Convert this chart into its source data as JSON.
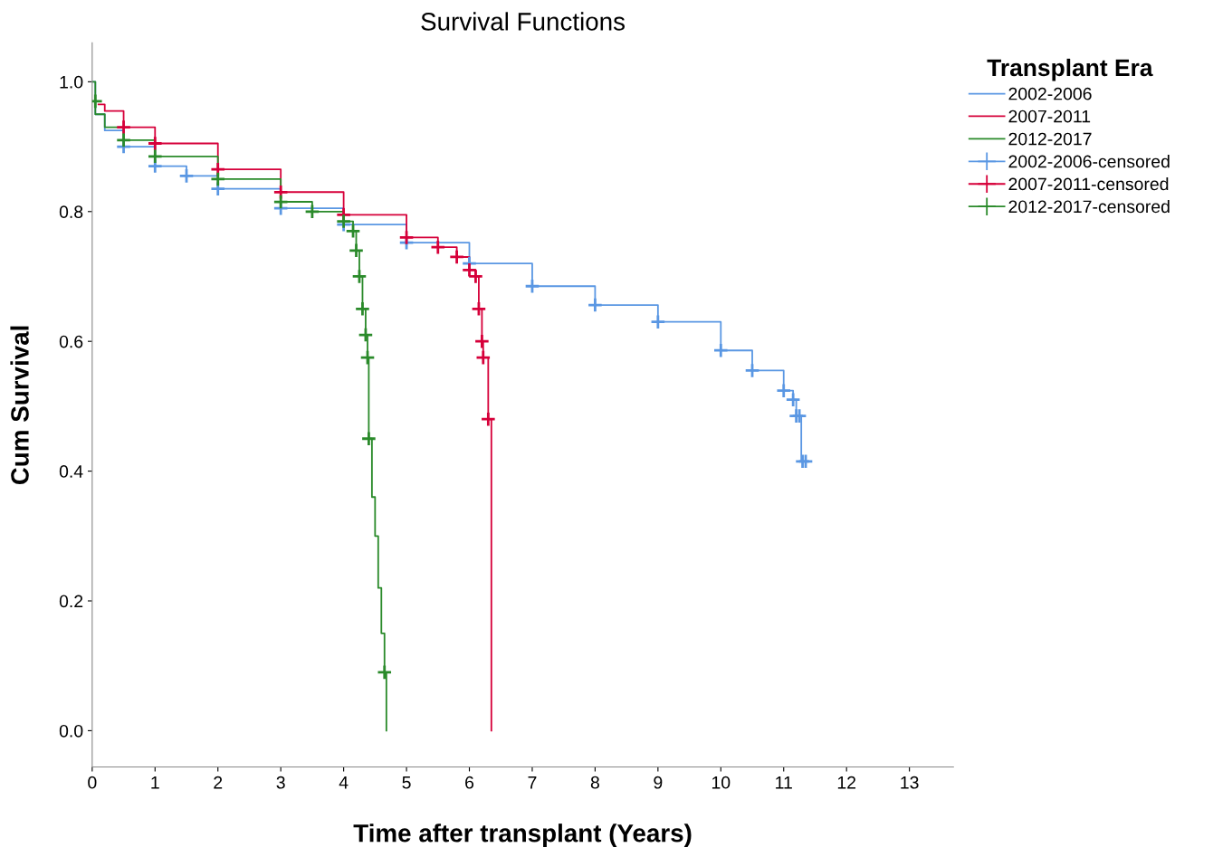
{
  "chart_data": {
    "type": "step",
    "title": "Survival Functions",
    "xlabel": "Time after transplant (Years)",
    "ylabel": "Cum Survival",
    "legend_title": "Transplant Era",
    "legend": "top right",
    "grid": false,
    "xlim": [
      0,
      13.7
    ],
    "ylim": [
      -0.056,
      1.06
    ],
    "xticks": [
      0,
      1,
      2,
      3,
      4,
      5,
      6,
      7,
      8,
      9,
      10,
      11,
      12,
      13
    ],
    "yticks": [
      {
        "value": 0,
        "label": "0.0"
      },
      {
        "value": 0.2,
        "label": "0.2"
      },
      {
        "value": 0.4,
        "label": "0.4"
      },
      {
        "value": 0.6,
        "label": "0.6"
      },
      {
        "value": 0.8,
        "label": "0.8"
      },
      {
        "value": 1,
        "label": "1.0"
      }
    ],
    "series": [
      {
        "name": "2002-2006",
        "color": "#5a97e3",
        "x": [
          0,
          0.05,
          0.2,
          0.5,
          1,
          1.5,
          2,
          3,
          4,
          5,
          6,
          7,
          8,
          9,
          10,
          10.5,
          11,
          11.15,
          11.2,
          11.28,
          11.35
        ],
        "values": [
          1.0,
          0.95,
          0.925,
          0.9,
          0.87,
          0.855,
          0.835,
          0.805,
          0.78,
          0.752,
          0.72,
          0.685,
          0.656,
          0.63,
          0.586,
          0.555,
          0.524,
          0.51,
          0.485,
          0.415,
          0.415
        ]
      },
      {
        "name": "2007-2011",
        "color": "#d6003a",
        "x": [
          0.1,
          0.2,
          0.5,
          1,
          2,
          3,
          4,
          5,
          5.5,
          5.8,
          6,
          6.1,
          6.15,
          6.2,
          6.22,
          6.3,
          6.35
        ],
        "values": [
          0.965,
          0.955,
          0.93,
          0.905,
          0.865,
          0.83,
          0.795,
          0.76,
          0.745,
          0.73,
          0.71,
          0.7,
          0.65,
          0.6,
          0.575,
          0.48,
          0.0
        ]
      },
      {
        "name": "2012-2017",
        "color": "#2a8a2a",
        "x": [
          0,
          0.05,
          0.2,
          0.5,
          1,
          2,
          3,
          3.5,
          4,
          4.15,
          4.2,
          4.25,
          4.3,
          4.35,
          4.38,
          4.4,
          4.45,
          4.5,
          4.55,
          4.6,
          4.65,
          4.68
        ],
        "values": [
          1.0,
          0.95,
          0.93,
          0.91,
          0.885,
          0.85,
          0.815,
          0.8,
          0.785,
          0.77,
          0.74,
          0.7,
          0.65,
          0.61,
          0.575,
          0.45,
          0.36,
          0.3,
          0.22,
          0.15,
          0.09,
          0.0
        ]
      },
      {
        "name": "2002-2006-censored",
        "type": "scatter",
        "marker": "cross",
        "color": "#5a97e3",
        "x": [
          0.5,
          1,
          1.5,
          2,
          3,
          4,
          5,
          6,
          7,
          8,
          9,
          10,
          10.5,
          11,
          11.15,
          11.2,
          11.25,
          11.3,
          11.35
        ],
        "values": [
          0.9,
          0.87,
          0.855,
          0.835,
          0.805,
          0.78,
          0.752,
          0.72,
          0.685,
          0.656,
          0.63,
          0.586,
          0.555,
          0.524,
          0.51,
          0.485,
          0.485,
          0.415,
          0.415
        ]
      },
      {
        "name": "2007-2011-censored",
        "type": "scatter",
        "marker": "cross",
        "color": "#d6003a",
        "x": [
          0.5,
          1,
          2,
          3,
          4,
          5,
          5.5,
          5.8,
          6,
          6.1,
          6.15,
          6.2,
          6.22,
          6.3
        ],
        "values": [
          0.93,
          0.905,
          0.865,
          0.83,
          0.795,
          0.76,
          0.745,
          0.73,
          0.71,
          0.7,
          0.65,
          0.6,
          0.575,
          0.48
        ]
      },
      {
        "name": "2012-2017-censored",
        "type": "scatter",
        "marker": "cross",
        "color": "#2a8a2a",
        "x": [
          0.05,
          0.5,
          1,
          2,
          3,
          3.5,
          4,
          4.15,
          4.2,
          4.25,
          4.3,
          4.35,
          4.38,
          4.4,
          4.65
        ],
        "values": [
          0.97,
          0.91,
          0.885,
          0.85,
          0.815,
          0.8,
          0.785,
          0.77,
          0.74,
          0.7,
          0.65,
          0.61,
          0.575,
          0.45,
          0.09
        ]
      }
    ]
  }
}
